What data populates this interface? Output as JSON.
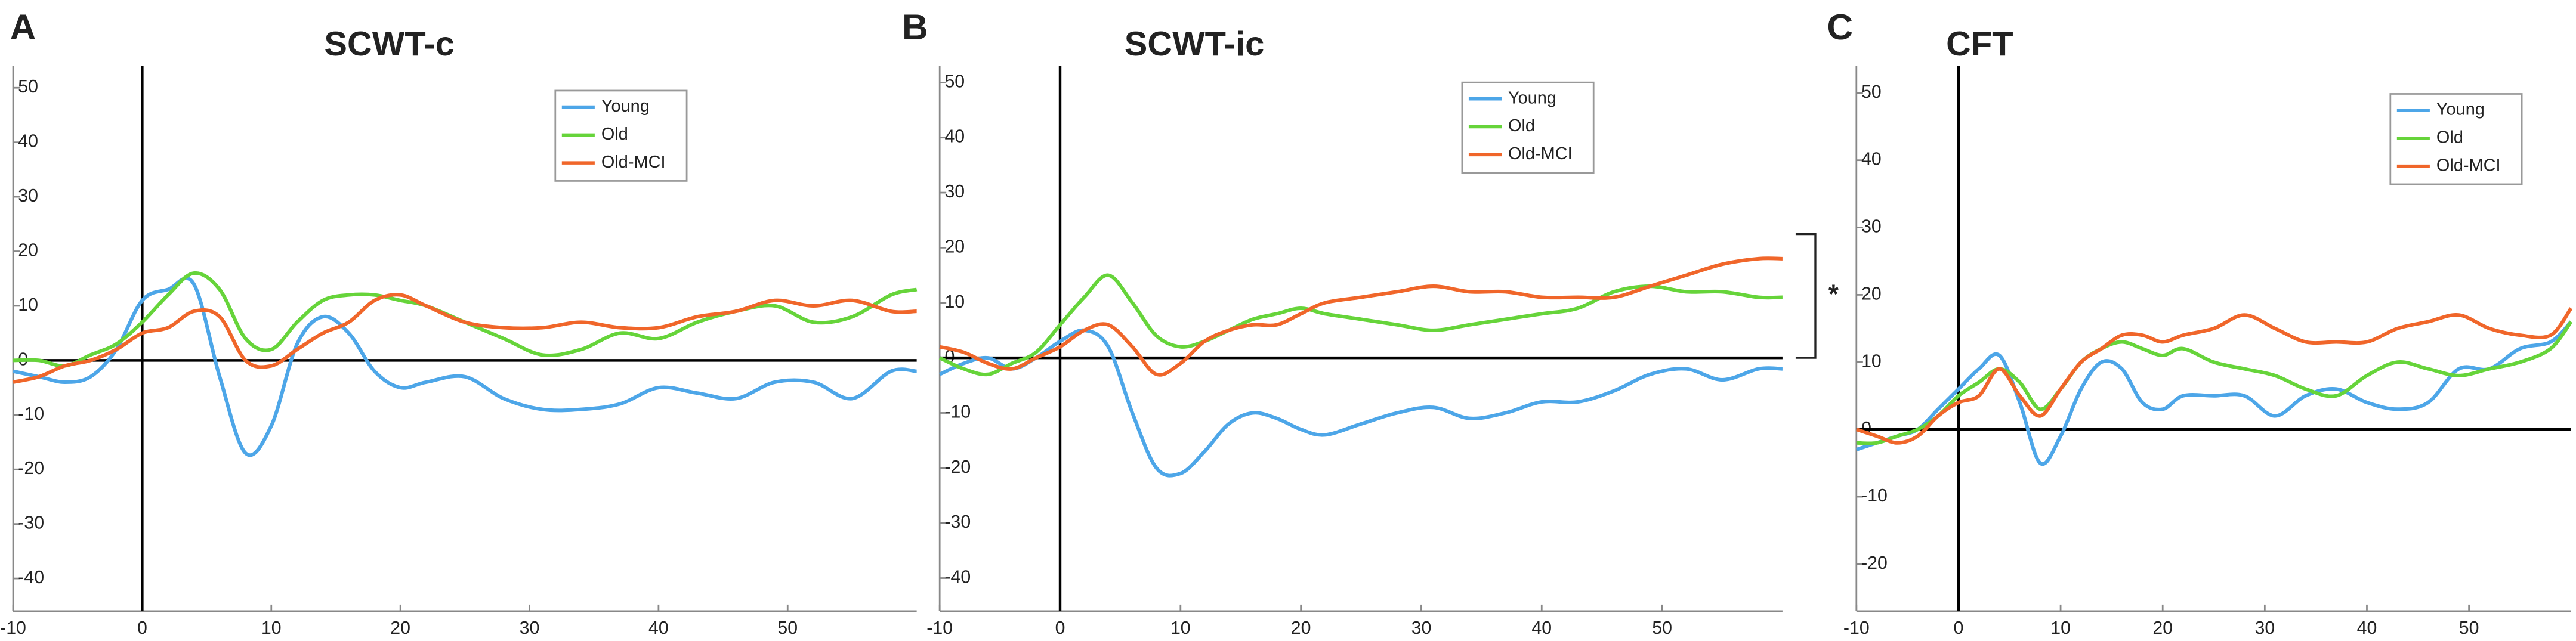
{
  "chart_data": [
    {
      "type": "line",
      "label": "A",
      "title": "SCWT-c",
      "x": [
        -10,
        -8,
        -6,
        -4,
        -2,
        0,
        2,
        4,
        6,
        8,
        10,
        12,
        14,
        16,
        18,
        20,
        22,
        25,
        28,
        31,
        34,
        37,
        40,
        43,
        46,
        49,
        52,
        55,
        58,
        60
      ],
      "xlim": [
        -10,
        60
      ],
      "xticks": [
        -10,
        0,
        10,
        20,
        30,
        40,
        50
      ],
      "ylim": [
        -46,
        54
      ],
      "yticks": [
        -40,
        -30,
        -20,
        -10,
        0,
        10,
        20,
        30,
        40,
        50
      ],
      "legend": "upper right",
      "series": [
        {
          "name": "Young",
          "color": "#4da6e8",
          "values": [
            -2,
            -3,
            -4,
            -3,
            2,
            11,
            13,
            14,
            -3,
            -17,
            -12,
            3,
            8,
            5,
            -2,
            -5,
            -4,
            -3,
            -7,
            -9,
            -9,
            -8,
            -5,
            -6,
            -7,
            -4,
            -4,
            -7,
            -2,
            -2
          ]
        },
        {
          "name": "Old",
          "color": "#66d43a",
          "values": [
            0,
            0,
            -1,
            1,
            3,
            7,
            12,
            16,
            13,
            4,
            2,
            7,
            11,
            12,
            12,
            11,
            10,
            7,
            4,
            1,
            2,
            5,
            4,
            7,
            9,
            10,
            7,
            8,
            12,
            13
          ]
        },
        {
          "name": "Old-MCI",
          "color": "#f0662a",
          "values": [
            -4,
            -3,
            -1,
            0,
            2,
            5,
            6,
            9,
            8,
            0,
            -1,
            2,
            5,
            7,
            11,
            12,
            10,
            7,
            6,
            6,
            7,
            6,
            6,
            8,
            9,
            11,
            10,
            11,
            9,
            9
          ]
        }
      ]
    },
    {
      "type": "line",
      "label": "B",
      "title": "SCWT-ic",
      "annotation": "*",
      "x": [
        -10,
        -8,
        -6,
        -4,
        -2,
        0,
        2,
        4,
        6,
        8,
        10,
        12,
        14,
        16,
        18,
        20,
        22,
        25,
        28,
        31,
        34,
        37,
        40,
        43,
        46,
        49,
        52,
        55,
        58,
        60
      ],
      "xlim": [
        -10,
        60
      ],
      "xticks": [
        -10,
        0,
        10,
        20,
        30,
        40,
        50
      ],
      "ylim": [
        -46,
        53
      ],
      "yticks": [
        -40,
        -30,
        -20,
        -10,
        0,
        10,
        20,
        30,
        40,
        50
      ],
      "legend": "upper right",
      "series": [
        {
          "name": "Young",
          "color": "#4da6e8",
          "values": [
            -3,
            -1,
            0,
            -2,
            0,
            3,
            5,
            2,
            -10,
            -20,
            -21,
            -17,
            -12,
            -10,
            -11,
            -13,
            -14,
            -12,
            -10,
            -9,
            -11,
            -10,
            -8,
            -8,
            -6,
            -3,
            -2,
            -4,
            -2,
            -2
          ]
        },
        {
          "name": "Old",
          "color": "#66d43a",
          "values": [
            0,
            -2,
            -3,
            -1,
            1,
            6,
            11,
            15,
            10,
            4,
            2,
            3,
            5,
            7,
            8,
            9,
            8,
            7,
            6,
            5,
            6,
            7,
            8,
            9,
            12,
            13,
            12,
            12,
            11,
            11
          ]
        },
        {
          "name": "Old-MCI",
          "color": "#f0662a",
          "values": [
            2,
            1,
            -1,
            -2,
            0,
            2,
            5,
            6,
            2,
            -3,
            -1,
            3,
            5,
            6,
            6,
            8,
            10,
            11,
            12,
            13,
            12,
            12,
            11,
            11,
            11,
            13,
            15,
            17,
            18,
            18
          ]
        }
      ]
    },
    {
      "type": "line",
      "label": "C",
      "title": "CFT",
      "x": [
        -10,
        -8,
        -6,
        -4,
        -2,
        0,
        2,
        4,
        6,
        8,
        10,
        12,
        14,
        16,
        18,
        20,
        22,
        25,
        28,
        31,
        34,
        37,
        40,
        43,
        46,
        49,
        52,
        55,
        58,
        60
      ],
      "xlim": [
        -10,
        60
      ],
      "xticks": [
        -10,
        0,
        10,
        20,
        30,
        40,
        50
      ],
      "ylim": [
        -27,
        54
      ],
      "yticks": [
        -20,
        -10,
        0,
        10,
        20,
        30,
        40,
        50
      ],
      "legend": "upper right",
      "series": [
        {
          "name": "Young",
          "color": "#4da6e8",
          "values": [
            -3,
            -2,
            -1,
            0,
            3,
            6,
            9,
            11,
            4,
            -5,
            -1,
            6,
            10,
            9,
            4,
            3,
            5,
            5,
            5,
            2,
            5,
            6,
            4,
            3,
            4,
            9,
            9,
            12,
            13,
            16
          ]
        },
        {
          "name": "Old",
          "color": "#66d43a",
          "values": [
            -2,
            -2,
            -1,
            0,
            2,
            5,
            7,
            9,
            7,
            3,
            6,
            10,
            12,
            13,
            12,
            11,
            12,
            10,
            9,
            8,
            6,
            5,
            8,
            10,
            9,
            8,
            9,
            10,
            12,
            16
          ]
        },
        {
          "name": "Old-MCI",
          "color": "#f0662a",
          "values": [
            0,
            -1,
            -2,
            -1,
            2,
            4,
            5,
            9,
            5,
            2,
            6,
            10,
            12,
            14,
            14,
            13,
            14,
            15,
            17,
            15,
            13,
            13,
            13,
            15,
            16,
            17,
            15,
            14,
            14,
            18
          ]
        }
      ]
    }
  ]
}
